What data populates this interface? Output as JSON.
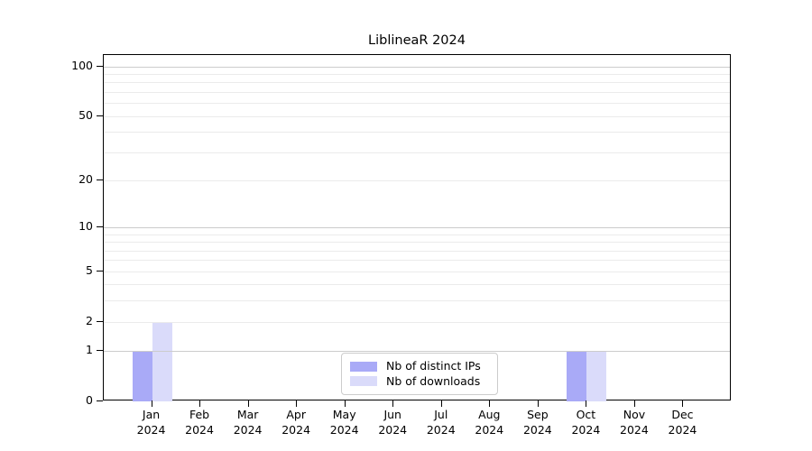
{
  "chart_data": {
    "type": "bar",
    "title": "LiblineaR 2024",
    "xlabel": "",
    "ylabel": "",
    "y_scale": "log1p",
    "ylim": [
      0,
      117
    ],
    "yticks": [
      0,
      1,
      2,
      5,
      10,
      20,
      50,
      100
    ],
    "grid": {
      "major_lines_at": [
        1,
        10,
        100
      ],
      "minor_lines_at": [
        2,
        3,
        4,
        5,
        6,
        7,
        8,
        9,
        20,
        30,
        40,
        50,
        60,
        70,
        80,
        90
      ]
    },
    "x_ticks": [
      {
        "label": "Jan",
        "sub": "2024"
      },
      {
        "label": "Feb",
        "sub": "2024"
      },
      {
        "label": "Mar",
        "sub": "2024"
      },
      {
        "label": "Apr",
        "sub": "2024"
      },
      {
        "label": "May",
        "sub": "2024"
      },
      {
        "label": "Jun",
        "sub": "2024"
      },
      {
        "label": "Jul",
        "sub": "2024"
      },
      {
        "label": "Aug",
        "sub": "2024"
      },
      {
        "label": "Sep",
        "sub": "2024"
      },
      {
        "label": "Oct",
        "sub": "2024"
      },
      {
        "label": "Nov",
        "sub": "2024"
      },
      {
        "label": "Dec",
        "sub": "2024"
      }
    ],
    "series": [
      {
        "name": "Nb of distinct IPs",
        "color": "#a9aaf7",
        "values": [
          1,
          0,
          0,
          0,
          0,
          0,
          0,
          0,
          0,
          1,
          0,
          0
        ]
      },
      {
        "name": "Nb of downloads",
        "color": "#dadbfa",
        "values": [
          2,
          0,
          0,
          0,
          0,
          0,
          0,
          0,
          0,
          1,
          0,
          0
        ]
      }
    ],
    "legend": {
      "position": "lower center"
    },
    "colors": {
      "grid_major": "#cccccc",
      "grid_minor": "#ebebeb",
      "axis": "#000000",
      "text": "#000000",
      "background": "#ffffff"
    }
  }
}
